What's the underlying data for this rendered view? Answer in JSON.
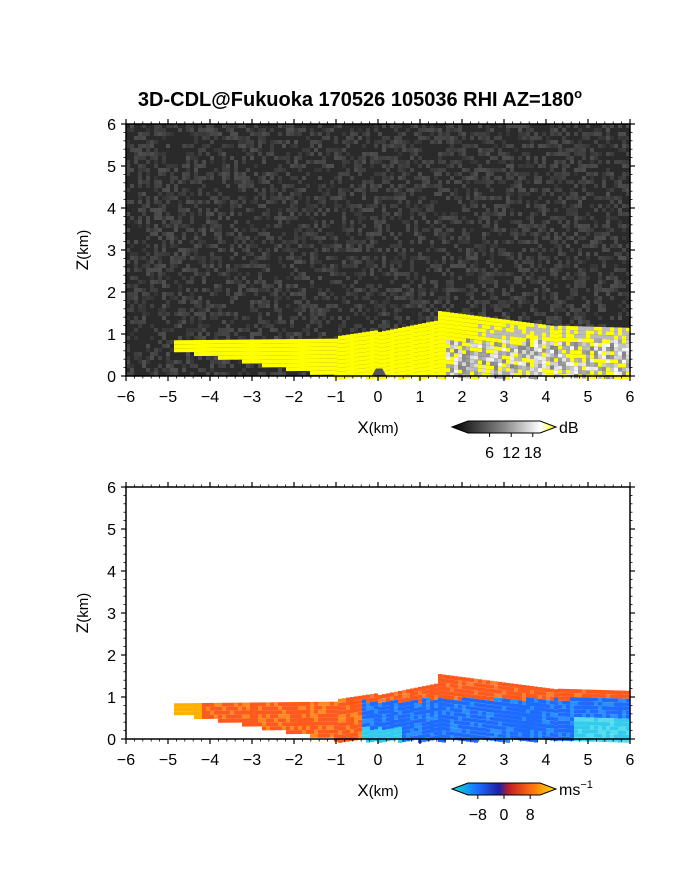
{
  "title": "3D-CDL@Fukuoka 170526 105036 RHI AZ=180",
  "title_suffix": "o",
  "chart_data": [
    {
      "type": "heatmap",
      "field": "intensity",
      "xlabel_main": "X",
      "xlabel_unit": "(km)",
      "ylabel_main": "Z",
      "ylabel_unit": "(km)",
      "xlim": [
        -6,
        6
      ],
      "ylim": [
        0,
        6
      ],
      "xticks": [
        "-6",
        "-5",
        "-4",
        "-3",
        "-2",
        "-1",
        "0",
        "1",
        "2",
        "3",
        "4",
        "5",
        "6"
      ],
      "yticks": [
        "0",
        "1",
        "2",
        "3",
        "4",
        "5",
        "6"
      ],
      "colorbar": {
        "unit": "dB",
        "ticks": [
          "6",
          "12",
          "18"
        ],
        "tick_values": [
          6,
          12,
          18
        ],
        "range": [
          0,
          20
        ]
      },
      "colors": {
        "background": "#2a2a2a",
        "echo": "#ffff00",
        "weak": "#c8c8c8"
      }
    },
    {
      "type": "heatmap",
      "field": "radial_velocity",
      "xlabel_main": "X",
      "xlabel_unit": "(km)",
      "ylabel_main": "Z",
      "ylabel_unit": "(km)",
      "xlim": [
        -6,
        6
      ],
      "ylim": [
        0,
        6
      ],
      "xticks": [
        "-6",
        "-5",
        "-4",
        "-3",
        "-2",
        "-1",
        "0",
        "1",
        "2",
        "3",
        "4",
        "5",
        "6"
      ],
      "yticks": [
        "0",
        "1",
        "2",
        "3",
        "4",
        "5",
        "6"
      ],
      "colorbar": {
        "unit": "ms",
        "unit_exp": "−1",
        "ticks": [
          "−8",
          "0",
          "8"
        ],
        "tick_values": [
          -8,
          0,
          8
        ],
        "range": [
          -11,
          11
        ]
      },
      "colors": {
        "negative": "#1e6cff",
        "cyan": "#33ccee",
        "positive": "#ff5a1e",
        "high": "#ffb000"
      }
    }
  ]
}
